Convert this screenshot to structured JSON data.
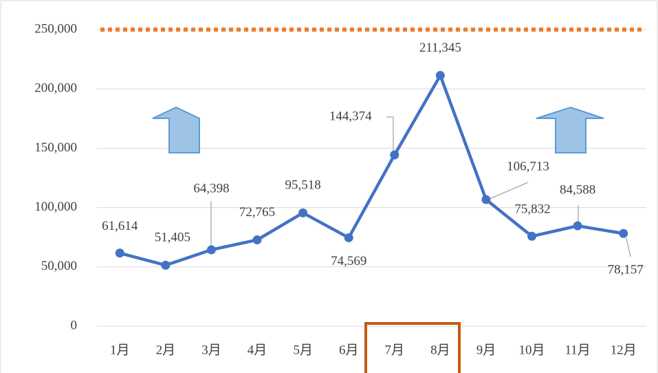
{
  "chart_data": {
    "type": "line",
    "categories": [
      "1月",
      "2月",
      "3月",
      "4月",
      "5月",
      "6月",
      "7月",
      "8月",
      "9月",
      "10月",
      "11月",
      "12月"
    ],
    "series": [
      {
        "color": "#4472c4",
        "values": [
          61614,
          51405,
          64398,
          72765,
          95518,
          74569,
          144374,
          211345,
          106713,
          75832,
          84588,
          78157
        ],
        "value_labels": [
          "61,614",
          "51,405",
          "64,398",
          "72,765",
          "95,518",
          "74,569",
          "144,374",
          "211,345",
          "106,713",
          "75,832",
          "84,588",
          "78,157"
        ]
      }
    ],
    "reference_line": {
      "value": 250000,
      "color": "#ed7d31"
    },
    "ylim": [
      0,
      250000
    ],
    "yticks": [
      0,
      {
        "value": 50000,
        "label": "50,000"
      },
      {
        "value": 100000,
        "label": "100,000"
      },
      {
        "value": 150000,
        "label": "150,000"
      },
      {
        "value": 200000,
        "label": "200,000"
      },
      {
        "value": 250000,
        "label": "250,000"
      }
    ],
    "grid": true
  }
}
